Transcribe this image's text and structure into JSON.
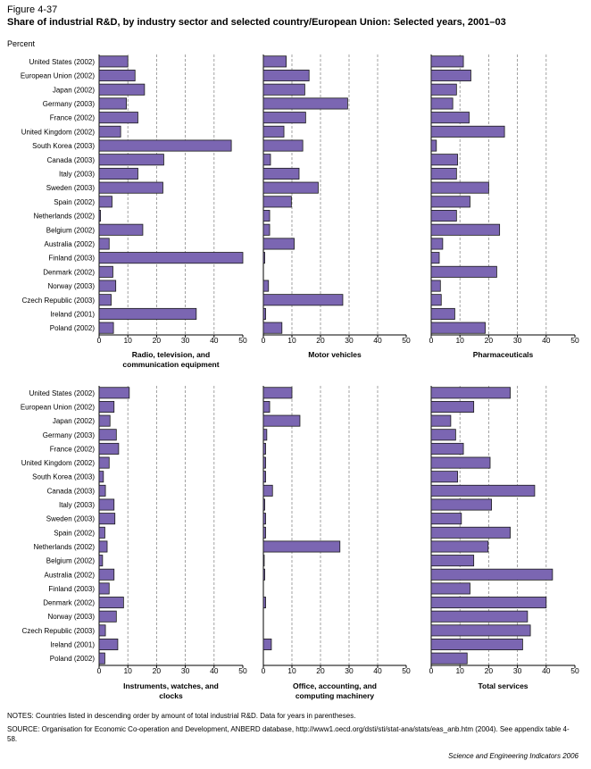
{
  "figure_label": "Figure 4-37",
  "title": "Share of industrial R&D, by industry sector and selected country/European Union: Selected years, 2001–03",
  "unit": "Percent",
  "colors": {
    "bar_fill": "#7b66b2",
    "bar_stroke": "#1a1a1a",
    "gridline": "#8c8c8c"
  },
  "notes": "NOTES: Countries listed in descending order by amount of total industrial R&D. Data for years in parentheses.",
  "source": "SOURCE: Organisation for Economic Co-operation and Development, ANBERD database, http://www1.oecd.org/dsti/sti/stat-ana/stats/eas_anb.htm (2004). See appendix table 4-58.",
  "credit": "Science and Engineering Indicators 2006",
  "chart_data": [
    {
      "type": "bar",
      "orientation": "horizontal",
      "xlabel": "Radio, television, and communication equipment",
      "xlim": [
        0,
        50
      ],
      "x_ticks": [
        "0",
        "10",
        "20",
        "30",
        "40",
        "50"
      ],
      "grid": "vertical dashed",
      "categories": [
        "United States (2002)",
        "European Union (2002)",
        "Japan (2002)",
        "Germany (2003)",
        "France (2002)",
        "United Kingdom (2002)",
        "South Korea (2003)",
        "Canada (2003)",
        "Italy (2003)",
        "Sweden (2003)",
        "Spain (2002)",
        "Netherlands (2002)",
        "Belgium (2002)",
        "Australia (2002)",
        "Finland (2003)",
        "Denmark (2002)",
        "Norway (2003)",
        "Czech Republic (2003)",
        "Ireland (2001)",
        "Poland (2002)"
      ],
      "values": [
        10,
        12.5,
        15.8,
        9.5,
        13.5,
        7.5,
        46,
        22.5,
        13.5,
        22.2,
        4.5,
        0.5,
        15.2,
        3.5,
        50,
        4.8,
        5.8,
        4.2,
        33.8,
        5
      ]
    },
    {
      "type": "bar",
      "orientation": "horizontal",
      "xlabel": "Motor vehicles",
      "xlim": [
        0,
        50
      ],
      "x_ticks": [
        "0",
        "10",
        "20",
        "30",
        "40",
        "50"
      ],
      "grid": "vertical dashed",
      "categories": [
        "United States (2002)",
        "European Union (2002)",
        "Japan (2002)",
        "Germany (2003)",
        "France (2002)",
        "United Kingdom (2002)",
        "South Korea (2003)",
        "Canada (2003)",
        "Italy (2003)",
        "Sweden (2003)",
        "Spain (2002)",
        "Netherlands (2002)",
        "Belgium (2002)",
        "Australia (2002)",
        "Finland (2003)",
        "Denmark (2002)",
        "Norway (2003)",
        "Czech Republic (2003)",
        "Ireland (2001)",
        "Poland (2002)"
      ],
      "values": [
        8,
        16,
        14.5,
        29.5,
        14.8,
        7.2,
        13.8,
        2.5,
        12.5,
        19.2,
        9.8,
        2.2,
        2.2,
        10.8,
        0.5,
        0,
        1.8,
        27.8,
        0.8,
        6.5
      ]
    },
    {
      "type": "bar",
      "orientation": "horizontal",
      "xlabel": "Pharmaceuticals",
      "xlim": [
        0,
        50
      ],
      "x_ticks": [
        "0",
        "10",
        "20",
        "30",
        "40",
        "50"
      ],
      "grid": "vertical dashed",
      "categories": [
        "United States (2002)",
        "European Union (2002)",
        "Japan (2002)",
        "Germany (2003)",
        "France (2002)",
        "United Kingdom (2002)",
        "South Korea (2003)",
        "Canada (2003)",
        "Italy (2003)",
        "Sweden (2003)",
        "Spain (2002)",
        "Netherlands (2002)",
        "Belgium (2002)",
        "Australia (2002)",
        "Finland (2003)",
        "Denmark (2002)",
        "Norway (2003)",
        "Czech Republic (2003)",
        "Ireland (2001)",
        "Poland (2002)"
      ],
      "values": [
        11.2,
        13.8,
        8.8,
        7.5,
        13.2,
        25.5,
        1.8,
        9.2,
        8.8,
        20,
        13.5,
        8.8,
        23.8,
        4,
        2.8,
        22.8,
        3.2,
        3.5,
        8.2,
        18.8
      ]
    },
    {
      "type": "bar",
      "orientation": "horizontal",
      "xlabel": "Instruments, watches, and clocks",
      "xlim": [
        0,
        50
      ],
      "x_ticks": [
        "0",
        "10",
        "20",
        "30",
        "40",
        "50"
      ],
      "grid": "vertical dashed",
      "categories": [
        "United States (2002)",
        "European Union (2002)",
        "Japan (2002)",
        "Germany (2003)",
        "France (2002)",
        "United Kingdom (2002)",
        "South Korea (2003)",
        "Canada (2003)",
        "Italy (2003)",
        "Sweden (2003)",
        "Spain (2002)",
        "Netherlands (2002)",
        "Belgium (2002)",
        "Australia (2002)",
        "Finland (2003)",
        "Denmark (2002)",
        "Norway (2003)",
        "Czech Republic (2003)",
        "Ireland (2001)",
        "Poland (2002)"
      ],
      "values": [
        10.5,
        5.2,
        3.8,
        6,
        6.8,
        3.5,
        1.5,
        2.2,
        5.2,
        5.5,
        2,
        2.8,
        1.2,
        5.2,
        3.5,
        8.5,
        6,
        2.2,
        6.5,
        2
      ]
    },
    {
      "type": "bar",
      "orientation": "horizontal",
      "xlabel": "Office, accounting, and computing machinery",
      "xlim": [
        0,
        50
      ],
      "x_ticks": [
        "0",
        "10",
        "20",
        "30",
        "40",
        "50"
      ],
      "grid": "vertical dashed",
      "categories": [
        "United States (2002)",
        "European Union (2002)",
        "Japan (2002)",
        "Germany (2003)",
        "France (2002)",
        "United Kingdom (2002)",
        "South Korea (2003)",
        "Canada (2003)",
        "Italy (2003)",
        "Sweden (2003)",
        "Spain (2002)",
        "Netherlands (2002)",
        "Belgium (2002)",
        "Australia (2002)",
        "Finland (2003)",
        "Denmark (2002)",
        "Norway (2003)",
        "Czech Republic (2003)",
        "Ireland (2001)",
        "Poland (2002)"
      ],
      "values": [
        10,
        2.2,
        12.8,
        1.2,
        0.8,
        0.8,
        0.8,
        3.2,
        0.5,
        0.8,
        0.8,
        26.8,
        0.3,
        0.5,
        0,
        0.8,
        0,
        0,
        2.8,
        0
      ]
    },
    {
      "type": "bar",
      "orientation": "horizontal",
      "xlabel": "Total services",
      "xlim": [
        0,
        50
      ],
      "x_ticks": [
        "0",
        "10",
        "20",
        "30",
        "40",
        "50"
      ],
      "grid": "vertical dashed",
      "categories": [
        "United States (2002)",
        "European Union (2002)",
        "Japan (2002)",
        "Germany (2003)",
        "France (2002)",
        "United Kingdom (2002)",
        "South Korea (2003)",
        "Canada (2003)",
        "Italy (2003)",
        "Sweden (2003)",
        "Spain (2002)",
        "Netherlands (2002)",
        "Belgium (2002)",
        "Australia (2002)",
        "Finland (2003)",
        "Denmark (2002)",
        "Norway (2003)",
        "Czech Republic (2003)",
        "Ireland (2001)",
        "Poland (2002)"
      ],
      "values": [
        27.5,
        14.8,
        6.8,
        8.5,
        11.2,
        20.5,
        9.2,
        36,
        21,
        10.5,
        27.5,
        19.8,
        14.8,
        42.2,
        13.5,
        40,
        33.5,
        34.5,
        31.8,
        12.5
      ]
    }
  ]
}
